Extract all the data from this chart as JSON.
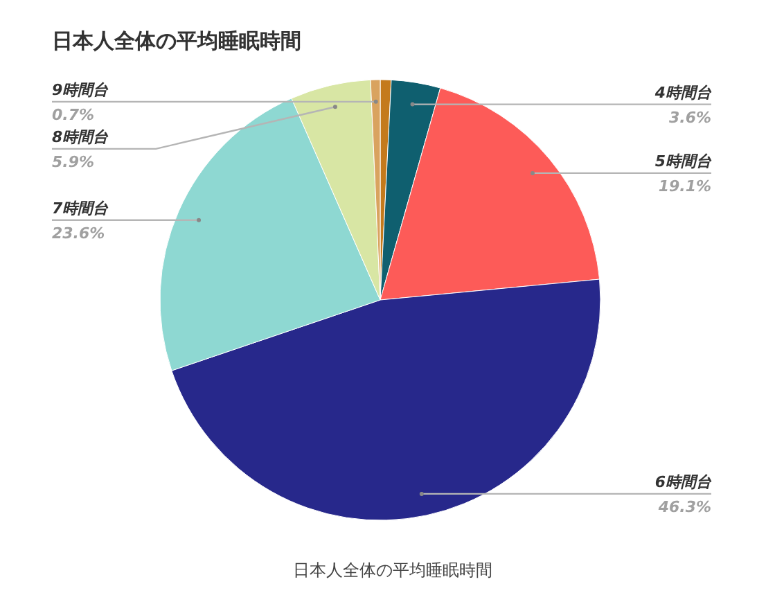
{
  "chart_data": {
    "type": "pie",
    "title": "日本人全体の平均睡眠時間",
    "categories": [
      null,
      "4時間台",
      "5時間台",
      "6時間台",
      "7時間台",
      "8時間台",
      "9時間台"
    ],
    "values": [
      0.8,
      3.6,
      19.1,
      46.3,
      23.6,
      5.9,
      0.7
    ],
    "colors": [
      "#c47a1c",
      "#0f5f6f",
      "#fd5b58",
      "#27288b",
      "#8ed8d2",
      "#d8e6a4",
      "#d9a35f"
    ],
    "value_labels": [
      null,
      "3.6%",
      "19.1%",
      "46.3%",
      "23.6%",
      "5.9%",
      "0.7%"
    ],
    "annotations": [
      "日本人全体の平均睡眠時間"
    ]
  }
}
